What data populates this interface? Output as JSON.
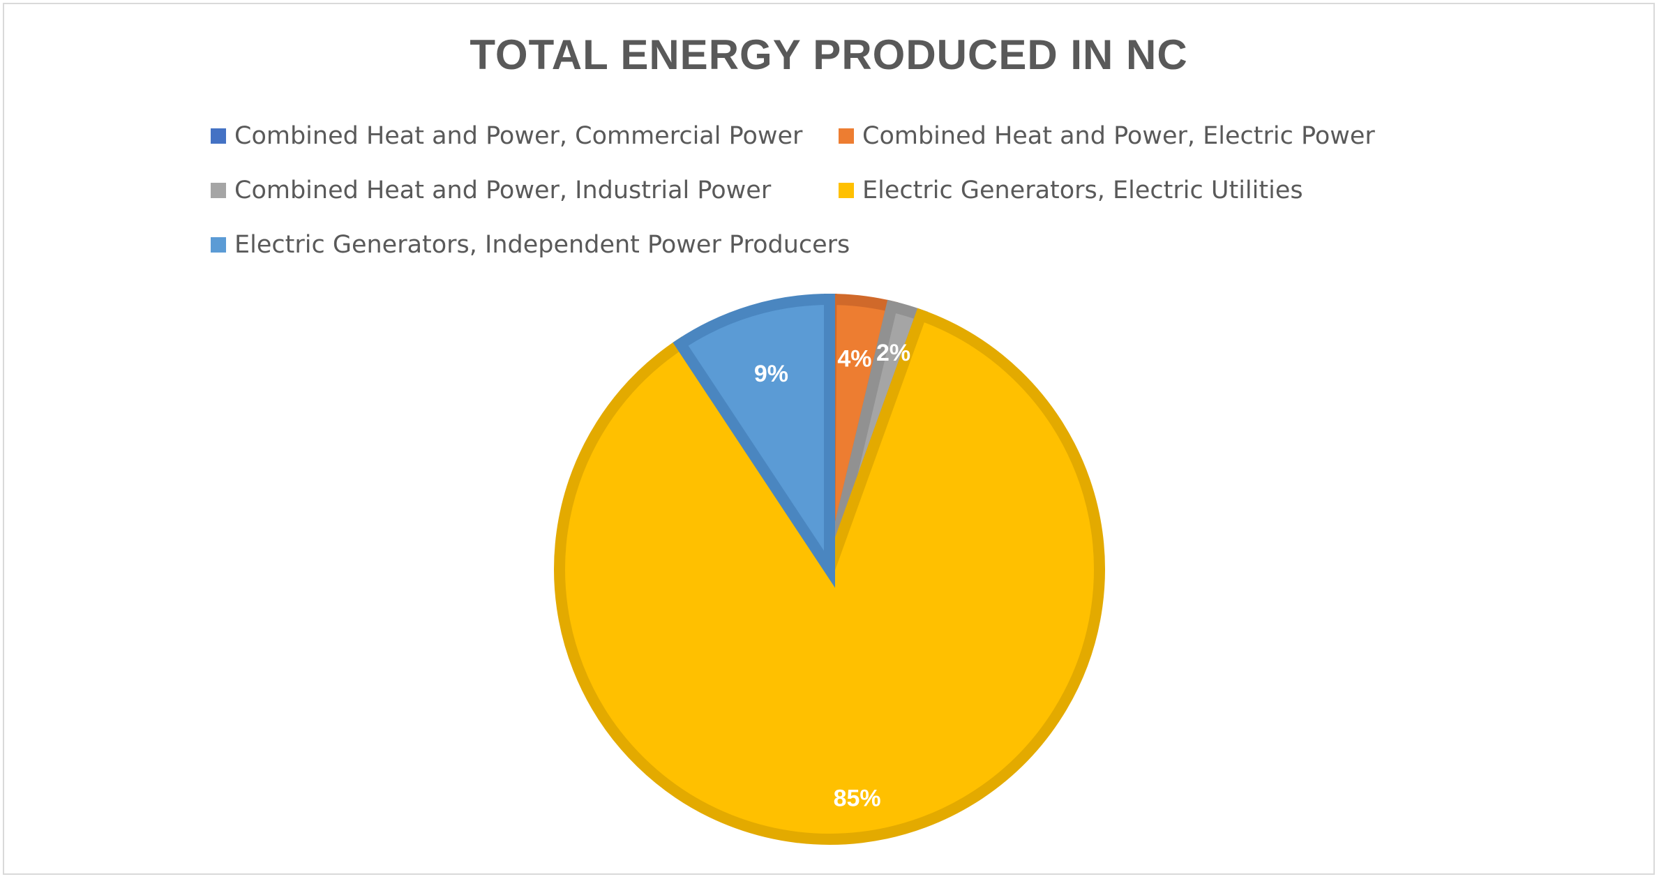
{
  "chart_data": {
    "type": "pie",
    "title": "TOTAL ENERGY PRODUCED IN NC",
    "legend_position": "top",
    "slices": [
      {
        "name": "Combined Heat and Power, Commercial Power",
        "value": 0.1,
        "label": "",
        "color": "#4472C4",
        "border": "#3A63AC"
      },
      {
        "name": "Combined Heat and Power, Electric Power",
        "value": 3.6,
        "label": "4%",
        "color": "#ED7D31",
        "border": "#D0692A"
      },
      {
        "name": "Combined Heat and Power, Industrial Power",
        "value": 1.8,
        "label": "2%",
        "color": "#A5A5A5",
        "border": "#919191"
      },
      {
        "name": "Electric Generators, Electric Utilities",
        "value": 85.2,
        "label": "85%",
        "color": "#FFC000",
        "border": "#E3AA00"
      },
      {
        "name": "Electric Generators, Independent Power Producers",
        "value": 9.3,
        "label": "9%",
        "color": "#5B9BD5",
        "border": "#4A86C0"
      }
    ]
  }
}
